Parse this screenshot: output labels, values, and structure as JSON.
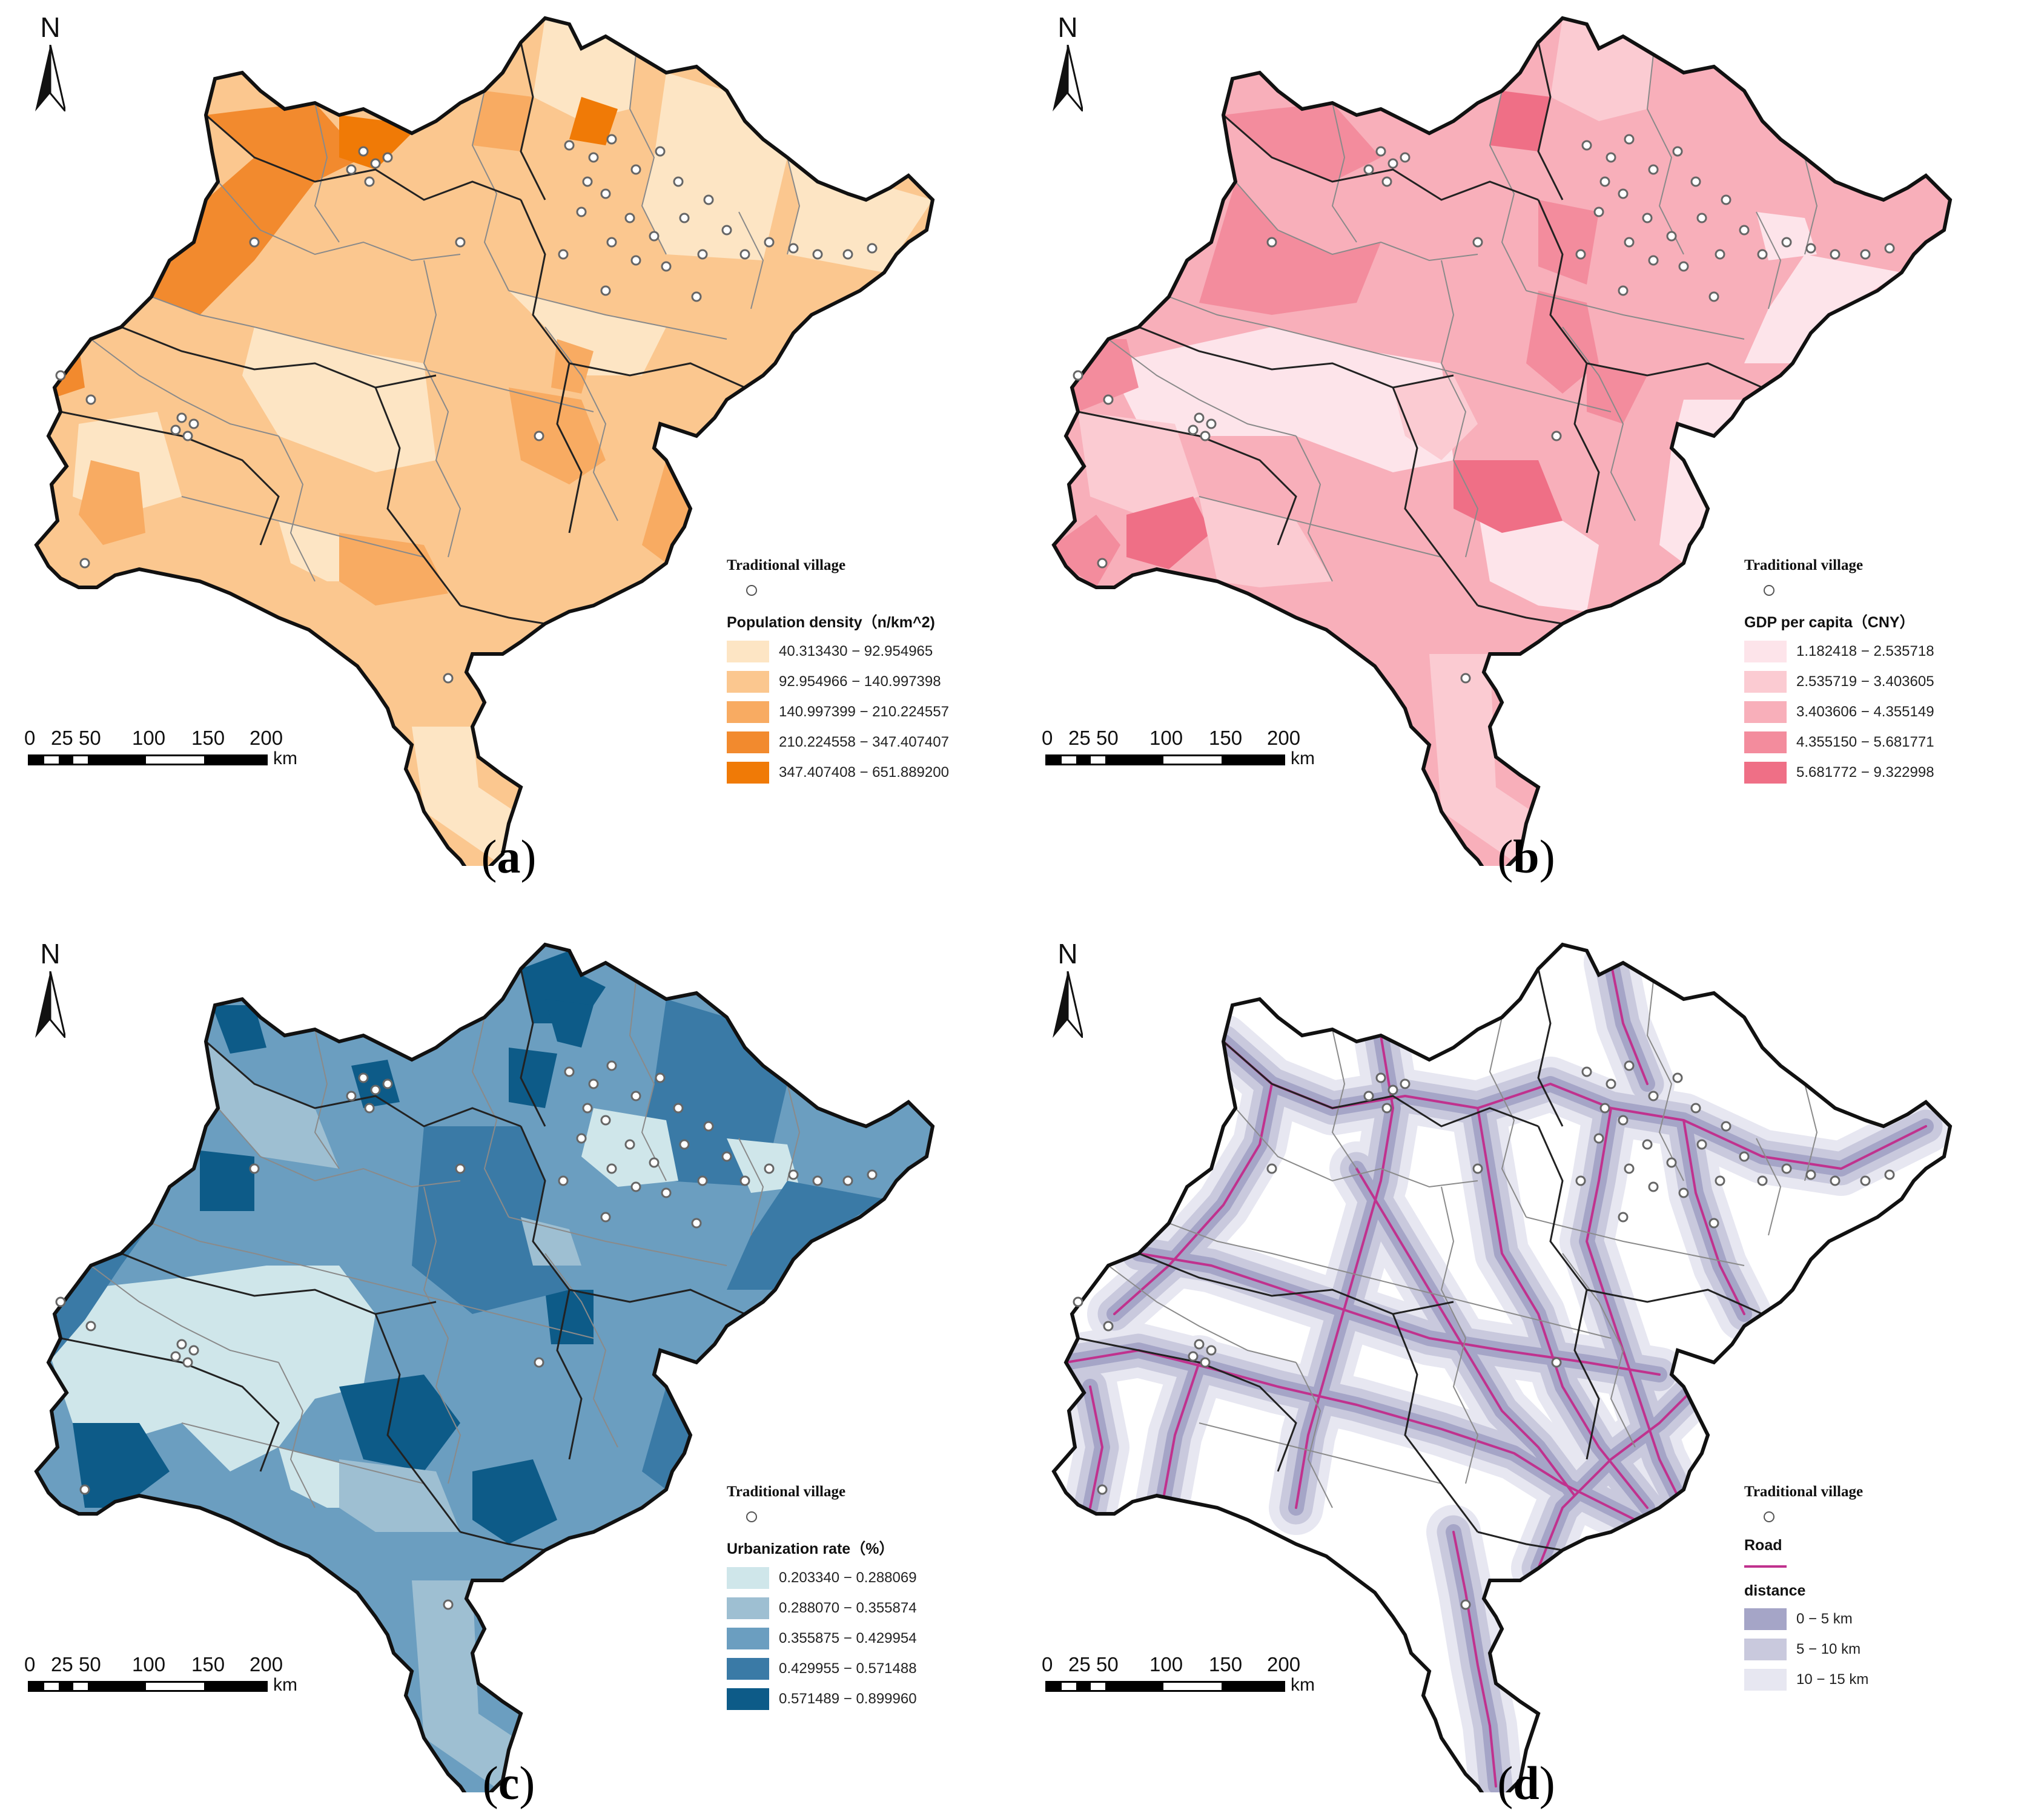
{
  "north_label": "N",
  "scale": {
    "ticks": [
      "0",
      "25",
      "50",
      "100",
      "150",
      "200"
    ],
    "unit": "km"
  },
  "village_label": "Traditional village",
  "panels": [
    {
      "id": "a",
      "caption_open": "(",
      "caption_letter": "a",
      "caption_close": ")",
      "legend_title": "Population density（n/km^2)",
      "classes": [
        {
          "label": "40.313430 − 92.954965",
          "color": "#fde5c4"
        },
        {
          "label": "92.954966 − 140.997398",
          "color": "#fbc78f"
        },
        {
          "label": "140.997399 − 210.224557",
          "color": "#f8ab62"
        },
        {
          "label": "210.224558 − 347.407407",
          "color": "#f28a2e"
        },
        {
          "label": "347.407408 − 651.889200",
          "color": "#f07a06"
        }
      ]
    },
    {
      "id": "b",
      "caption_open": "(",
      "caption_letter": "b",
      "caption_close": ")",
      "legend_title": "GDP per capita（CNY）",
      "classes": [
        {
          "label": "1.182418 − 2.535718",
          "color": "#fde4ea"
        },
        {
          "label": "2.535719 − 3.403605",
          "color": "#fbcbd2"
        },
        {
          "label": "3.403606 − 4.355149",
          "color": "#f8afba"
        },
        {
          "label": "4.355150 − 5.681771",
          "color": "#f38c9d"
        },
        {
          "label": "5.681772 − 9.322998",
          "color": "#ef6f86"
        }
      ]
    },
    {
      "id": "c",
      "caption_open": "(",
      "caption_letter": "c",
      "caption_close": ")",
      "legend_title": "Urbanization rate（%）",
      "classes": [
        {
          "label": "0.203340 − 0.288069",
          "color": "#cfe6ea"
        },
        {
          "label": "0.288070 − 0.355874",
          "color": "#9ebfd2"
        },
        {
          "label": "0.355875 − 0.429954",
          "color": "#6b9ec0"
        },
        {
          "label": "0.429955 − 0.571488",
          "color": "#3a7aa6"
        },
        {
          "label": "0.571489 − 0.899960",
          "color": "#0d5b88"
        }
      ]
    },
    {
      "id": "d",
      "caption_open": "(",
      "caption_letter": "d",
      "caption_close": ")",
      "road_label": "Road",
      "road_color": "#c0328e",
      "legend_title": "distance",
      "classes": [
        {
          "label": "0 − 5 km",
          "color": "#a5a5c7"
        },
        {
          "label": "5 − 10 km",
          "color": "#c9c9dd"
        },
        {
          "label": "10 − 15 km",
          "color": "#e7e7f1"
        }
      ]
    }
  ]
}
